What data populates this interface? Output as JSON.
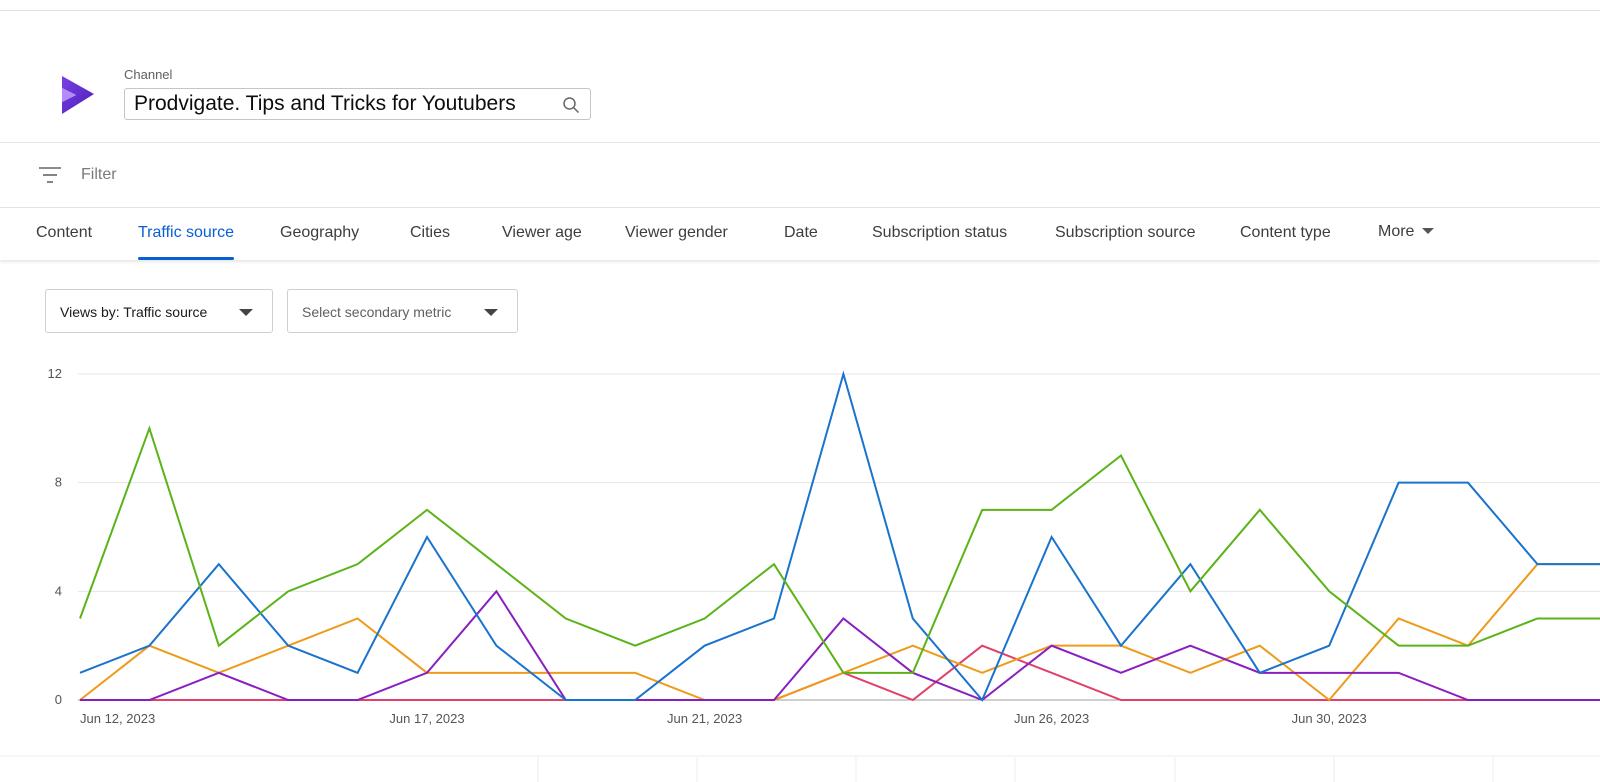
{
  "channel": {
    "caption": "Channel",
    "name": "Prodvigate. Tips and Tricks for Youtubers"
  },
  "filter": {
    "placeholder": "Filter"
  },
  "tabs": [
    {
      "label": "Content",
      "active": false
    },
    {
      "label": "Traffic source",
      "active": true
    },
    {
      "label": "Geography",
      "active": false
    },
    {
      "label": "Cities",
      "active": false
    },
    {
      "label": "Viewer age",
      "active": false
    },
    {
      "label": "Viewer gender",
      "active": false
    },
    {
      "label": "Date",
      "active": false
    },
    {
      "label": "Subscription status",
      "active": false
    },
    {
      "label": "Subscription source",
      "active": false
    },
    {
      "label": "Content type",
      "active": false
    },
    {
      "label": "More",
      "active": false
    }
  ],
  "metrics": {
    "primary": "Views by: Traffic source",
    "secondary": "Select secondary metric"
  },
  "colors": {
    "accent": "#065fd4",
    "series_green": "#5bb318",
    "series_blue": "#1a73cc",
    "series_orange": "#ef9b1a",
    "series_purple": "#8a1fbf",
    "series_red": "#e0406a"
  },
  "chart_data": {
    "type": "line",
    "x": [
      "Jun 12, 2023",
      "Jun 13, 2023",
      "Jun 14, 2023",
      "Jun 15, 2023",
      "Jun 16, 2023",
      "Jun 17, 2023",
      "Jun 18, 2023",
      "Jun 19, 2023",
      "Jun 20, 2023",
      "Jun 21, 2023",
      "Jun 22, 2023",
      "Jun 23, 2023",
      "Jun 24, 2023",
      "Jun 25, 2023",
      "Jun 26, 2023",
      "Jun 27, 2023",
      "Jun 28, 2023",
      "Jun 29, 2023",
      "Jun 30, 2023",
      "Jul 1, 2023",
      "Jul 2, 2023",
      "Jul 3, 2023",
      "Jul 4, 2023"
    ],
    "x_tick_labels": [
      "Jun 12, 2023",
      "Jun 17, 2023",
      "Jun 21, 2023",
      "Jun 26, 2023",
      "Jun 30, 2023"
    ],
    "y_ticks": [
      0,
      4,
      8,
      12
    ],
    "ylim": [
      0,
      12
    ],
    "grid": true,
    "series": [
      {
        "color": "#5bb318",
        "values": [
          3,
          10,
          2,
          4,
          5,
          7,
          5,
          3,
          2,
          3,
          5,
          1,
          1,
          7,
          7,
          9,
          4,
          7,
          4,
          2,
          2,
          3,
          3
        ]
      },
      {
        "color": "#1a73cc",
        "values": [
          1,
          2,
          5,
          2,
          1,
          6,
          2,
          0,
          0,
          2,
          3,
          12,
          3,
          0,
          6,
          2,
          5,
          1,
          2,
          8,
          8,
          5,
          5
        ]
      },
      {
        "color": "#ef9b1a",
        "values": [
          0,
          2,
          1,
          2,
          3,
          1,
          1,
          1,
          1,
          0,
          0,
          1,
          2,
          1,
          2,
          2,
          1,
          2,
          0,
          3,
          2,
          5,
          5
        ]
      },
      {
        "color": "#8a1fbf",
        "values": [
          0,
          0,
          1,
          0,
          0,
          1,
          4,
          0,
          0,
          0,
          0,
          3,
          1,
          0,
          2,
          1,
          2,
          1,
          1,
          1,
          0,
          0,
          0
        ]
      },
      {
        "color": "#e0406a",
        "values": [
          0,
          0,
          0,
          0,
          0,
          0,
          0,
          0,
          0,
          0,
          0,
          1,
          0,
          2,
          1,
          0,
          0,
          0,
          0,
          0,
          0,
          0,
          0
        ]
      }
    ]
  }
}
